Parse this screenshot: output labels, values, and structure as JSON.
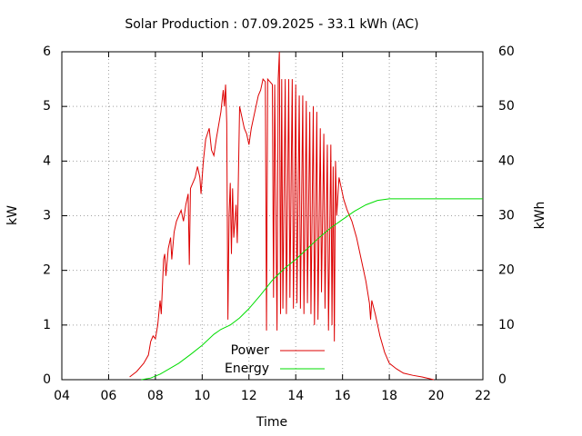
{
  "chart_data": {
    "type": "line",
    "title": "Solar Production : 07.09.2025 - 33.1 kWh (AC)",
    "xlabel": "Time",
    "ylabel": "kW",
    "y2label": "kWh",
    "xlim": [
      4,
      22
    ],
    "xticks": [
      {
        "value": 4,
        "label": "04"
      },
      {
        "value": 6,
        "label": "06"
      },
      {
        "value": 8,
        "label": "08"
      },
      {
        "value": 10,
        "label": "10"
      },
      {
        "value": 12,
        "label": "12"
      },
      {
        "value": 14,
        "label": "14"
      },
      {
        "value": 16,
        "label": "16"
      },
      {
        "value": 18,
        "label": "18"
      },
      {
        "value": 20,
        "label": "20"
      },
      {
        "value": 22,
        "label": "22"
      }
    ],
    "ylim": [
      0,
      6
    ],
    "yticks": [
      0,
      1,
      2,
      3,
      4,
      5,
      6
    ],
    "y2lim": [
      0,
      60
    ],
    "y2ticks": [
      0,
      10,
      20,
      30,
      40,
      50,
      60
    ],
    "grid": true,
    "legend": "bottom",
    "series": [
      {
        "name": "Power",
        "color": "#dd0000",
        "x": [
          6.9,
          7.2,
          7.5,
          7.7,
          7.8,
          7.9,
          8.0,
          8.1,
          8.2,
          8.25,
          8.35,
          8.4,
          8.45,
          8.55,
          8.65,
          8.7,
          8.8,
          8.9,
          9.0,
          9.1,
          9.2,
          9.3,
          9.4,
          9.45,
          9.5,
          9.7,
          9.8,
          9.9,
          9.95,
          10.05,
          10.15,
          10.3,
          10.4,
          10.5,
          10.6,
          10.8,
          10.9,
          10.95,
          11.0,
          11.05,
          11.1,
          11.15,
          11.2,
          11.25,
          11.3,
          11.35,
          11.45,
          11.5,
          11.6,
          11.7,
          11.8,
          11.9,
          12.0,
          12.1,
          12.2,
          12.3,
          12.4,
          12.5,
          12.6,
          12.7,
          12.75,
          12.8,
          12.9,
          13.0,
          13.05,
          13.1,
          13.2,
          13.25,
          13.3,
          13.35,
          13.4,
          13.45,
          13.55,
          13.6,
          13.7,
          13.75,
          13.85,
          13.9,
          14.0,
          14.05,
          14.15,
          14.2,
          14.3,
          14.35,
          14.45,
          14.5,
          14.6,
          14.65,
          14.75,
          14.8,
          14.9,
          14.95,
          15.05,
          15.1,
          15.2,
          15.25,
          15.35,
          15.4,
          15.5,
          15.55,
          15.6,
          15.65,
          15.7,
          15.75,
          15.85,
          15.95,
          16.05,
          16.2,
          16.4,
          16.6,
          16.8,
          17.0,
          17.15,
          17.2,
          17.25,
          17.4,
          17.6,
          17.8,
          18.0,
          18.3,
          18.6,
          19.0,
          19.4,
          19.9
        ],
        "values": [
          0.05,
          0.15,
          0.3,
          0.45,
          0.7,
          0.8,
          0.75,
          1.0,
          1.45,
          1.2,
          2.2,
          2.3,
          1.9,
          2.4,
          2.6,
          2.2,
          2.7,
          2.9,
          3.0,
          3.1,
          2.9,
          3.2,
          3.4,
          2.1,
          3.5,
          3.7,
          3.9,
          3.7,
          3.4,
          4.0,
          4.4,
          4.6,
          4.2,
          4.1,
          4.4,
          4.9,
          5.3,
          5.0,
          5.4,
          4.7,
          1.1,
          3.0,
          3.6,
          2.3,
          3.5,
          2.6,
          3.2,
          2.5,
          5.0,
          4.8,
          4.6,
          4.5,
          4.3,
          4.6,
          4.8,
          5.0,
          5.2,
          5.3,
          5.5,
          5.45,
          0.9,
          5.5,
          5.45,
          5.4,
          1.5,
          5.4,
          0.9,
          5.5,
          6.0,
          1.2,
          5.5,
          1.3,
          5.5,
          1.2,
          5.5,
          1.5,
          5.5,
          1.3,
          5.4,
          1.4,
          5.2,
          1.3,
          5.2,
          1.2,
          5.1,
          1.4,
          4.9,
          1.2,
          5.0,
          1.0,
          4.9,
          1.1,
          4.6,
          1.6,
          4.5,
          1.3,
          4.3,
          0.9,
          4.3,
          1.0,
          3.9,
          0.7,
          4.0,
          3.0,
          3.7,
          3.5,
          3.3,
          3.1,
          2.9,
          2.6,
          2.2,
          1.8,
          1.4,
          1.1,
          1.45,
          1.2,
          0.8,
          0.5,
          0.3,
          0.2,
          0.12,
          0.08,
          0.05,
          0.0
        ]
      },
      {
        "name": "Energy",
        "color": "#00dd00",
        "axis": "y2",
        "x": [
          7.4,
          7.8,
          8.2,
          8.6,
          9.0,
          9.5,
          10.0,
          10.5,
          10.8,
          11.2,
          11.6,
          12.0,
          12.5,
          13.0,
          13.5,
          14.0,
          14.5,
          15.0,
          15.5,
          16.0,
          16.5,
          17.0,
          17.5,
          18.0,
          19.0,
          20.0,
          22.0
        ],
        "values": [
          0,
          0.3,
          1.0,
          2.0,
          3.0,
          4.6,
          6.3,
          8.3,
          9.2,
          10.0,
          11.3,
          13.0,
          15.5,
          18.2,
          20.3,
          22.0,
          24.0,
          26.0,
          27.8,
          29.3,
          30.8,
          32.0,
          32.8,
          33.1,
          33.1,
          33.1,
          33.1
        ]
      }
    ]
  }
}
